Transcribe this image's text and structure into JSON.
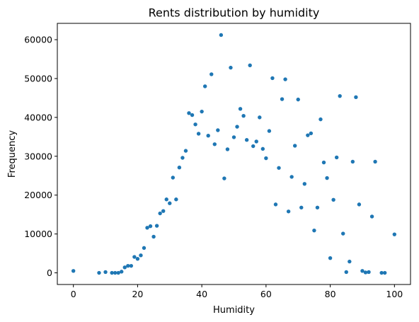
{
  "chart_data": {
    "type": "scatter",
    "title": "Rents distribution by humidity",
    "xlabel": "Humidity",
    "ylabel": "Frequency",
    "xlim": [
      -5,
      105
    ],
    "ylim": [
      -3000,
      64200
    ],
    "xticks": [
      0,
      20,
      40,
      60,
      80,
      100
    ],
    "yticks": [
      0,
      10000,
      20000,
      30000,
      40000,
      50000,
      60000
    ],
    "xtick_labels": [
      "0",
      "20",
      "40",
      "60",
      "80",
      "100"
    ],
    "ytick_labels": [
      "0",
      "10000",
      "20000",
      "30000",
      "40000",
      "50000",
      "60000"
    ],
    "marker_color": "#1f77b4",
    "grid": false,
    "points": [
      [
        0,
        500
      ],
      [
        8,
        0
      ],
      [
        10,
        200
      ],
      [
        12,
        0
      ],
      [
        13,
        0
      ],
      [
        14,
        0
      ],
      [
        15,
        300
      ],
      [
        16,
        1400
      ],
      [
        17,
        1800
      ],
      [
        18,
        1800
      ],
      [
        19,
        4100
      ],
      [
        20,
        3600
      ],
      [
        21,
        4500
      ],
      [
        22,
        6400
      ],
      [
        23,
        11600
      ],
      [
        24,
        12000
      ],
      [
        25,
        9300
      ],
      [
        26,
        12100
      ],
      [
        27,
        15300
      ],
      [
        28,
        15900
      ],
      [
        29,
        18900
      ],
      [
        30,
        17900
      ],
      [
        31,
        24500
      ],
      [
        32,
        18900
      ],
      [
        33,
        27100
      ],
      [
        34,
        29600
      ],
      [
        35,
        31400
      ],
      [
        36,
        41100
      ],
      [
        37,
        40600
      ],
      [
        38,
        38200
      ],
      [
        39,
        35800
      ],
      [
        40,
        41500
      ],
      [
        41,
        48000
      ],
      [
        42,
        35300
      ],
      [
        43,
        51100
      ],
      [
        44,
        33100
      ],
      [
        45,
        36700
      ],
      [
        46,
        61200
      ],
      [
        47,
        24300
      ],
      [
        48,
        31800
      ],
      [
        49,
        52800
      ],
      [
        50,
        34900
      ],
      [
        51,
        37600
      ],
      [
        52,
        42200
      ],
      [
        53,
        40400
      ],
      [
        54,
        34200
      ],
      [
        55,
        53400
      ],
      [
        56,
        32600
      ],
      [
        57,
        33800
      ],
      [
        58,
        40000
      ],
      [
        59,
        31900
      ],
      [
        60,
        29500
      ],
      [
        61,
        36500
      ],
      [
        62,
        50100
      ],
      [
        63,
        17600
      ],
      [
        64,
        27000
      ],
      [
        65,
        44700
      ],
      [
        66,
        49800
      ],
      [
        67,
        15800
      ],
      [
        68,
        24700
      ],
      [
        69,
        32700
      ],
      [
        70,
        44600
      ],
      [
        71,
        16800
      ],
      [
        72,
        22900
      ],
      [
        73,
        35400
      ],
      [
        74,
        35900
      ],
      [
        75,
        10900
      ],
      [
        76,
        16800
      ],
      [
        77,
        39500
      ],
      [
        78,
        28400
      ],
      [
        79,
        24400
      ],
      [
        80,
        3800
      ],
      [
        81,
        18800
      ],
      [
        82,
        29700
      ],
      [
        83,
        45500
      ],
      [
        84,
        10100
      ],
      [
        85,
        200
      ],
      [
        86,
        2900
      ],
      [
        87,
        28600
      ],
      [
        88,
        45200
      ],
      [
        89,
        17600
      ],
      [
        90,
        500
      ],
      [
        91,
        100
      ],
      [
        92,
        200
      ],
      [
        93,
        14500
      ],
      [
        94,
        28600
      ],
      [
        96,
        0
      ],
      [
        97,
        0
      ],
      [
        100,
        9900
      ]
    ]
  }
}
